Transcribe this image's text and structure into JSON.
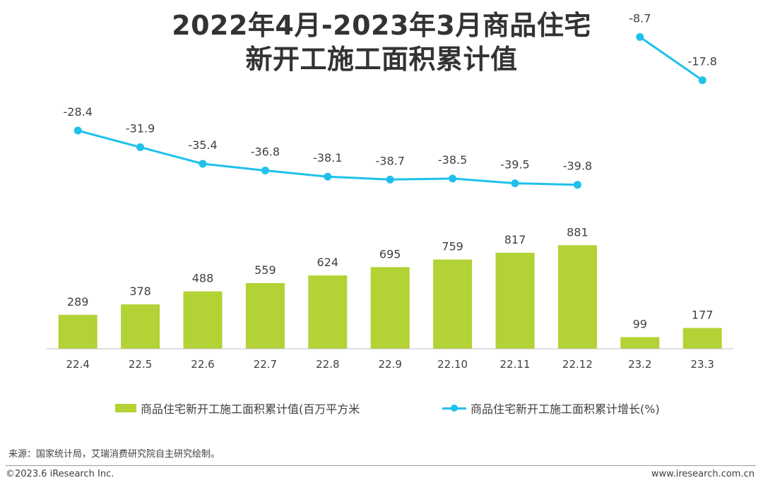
{
  "title": {
    "line1": "2022年4月-2023年3月商品住宅",
    "line2": "新开工施工面积累计值"
  },
  "legend": {
    "bar_label": "商品住宅新开工施工面积累计值(百万平方米",
    "line_label": "商品住宅新开工施工面积累计增长(%)"
  },
  "source": "来源：国家统计局，艾瑞消费研究院自主研究绘制。",
  "footer": {
    "copyright": "©2023.6 iResearch Inc.",
    "website": "www.iresearch.com.cn"
  },
  "colors": {
    "bar": "#B2D235",
    "line": "#1FC1EC",
    "axis": "#BFBFBF",
    "text": "#404040"
  },
  "chart_data": {
    "type": "bar",
    "categories": [
      "22.4",
      "22.5",
      "22.6",
      "22.7",
      "22.8",
      "22.9",
      "22.10",
      "22.11",
      "22.12",
      "23.2",
      "23.3"
    ],
    "series": [
      {
        "name": "商品住宅新开工施工面积累计值(百万平方米",
        "type": "bar",
        "values": [
          289,
          378,
          488,
          559,
          624,
          695,
          759,
          817,
          881,
          99,
          177
        ],
        "labels": [
          "289",
          "378",
          "488",
          "559",
          "624",
          "695",
          "759",
          "817",
          "881",
          "99",
          "177"
        ]
      },
      {
        "name": "商品住宅新开工施工面积累计增长(%)",
        "type": "line",
        "segments": [
          [
            0,
            8
          ],
          [
            9,
            10
          ]
        ],
        "values": [
          -28.4,
          -31.9,
          -35.4,
          -36.8,
          -38.1,
          -38.7,
          -38.5,
          -39.5,
          -39.8,
          -8.7,
          -17.8
        ],
        "labels": [
          "-28.4",
          "-31.9",
          "-35.4",
          "-36.8",
          "-38.1",
          "-38.7",
          "-38.5",
          "-39.5",
          "-39.8",
          "-8.7",
          "-17.8"
        ]
      }
    ],
    "bar_ylim": [
      0,
      1000
    ],
    "line_ylim": [
      -100,
      0
    ],
    "grid": false
  }
}
